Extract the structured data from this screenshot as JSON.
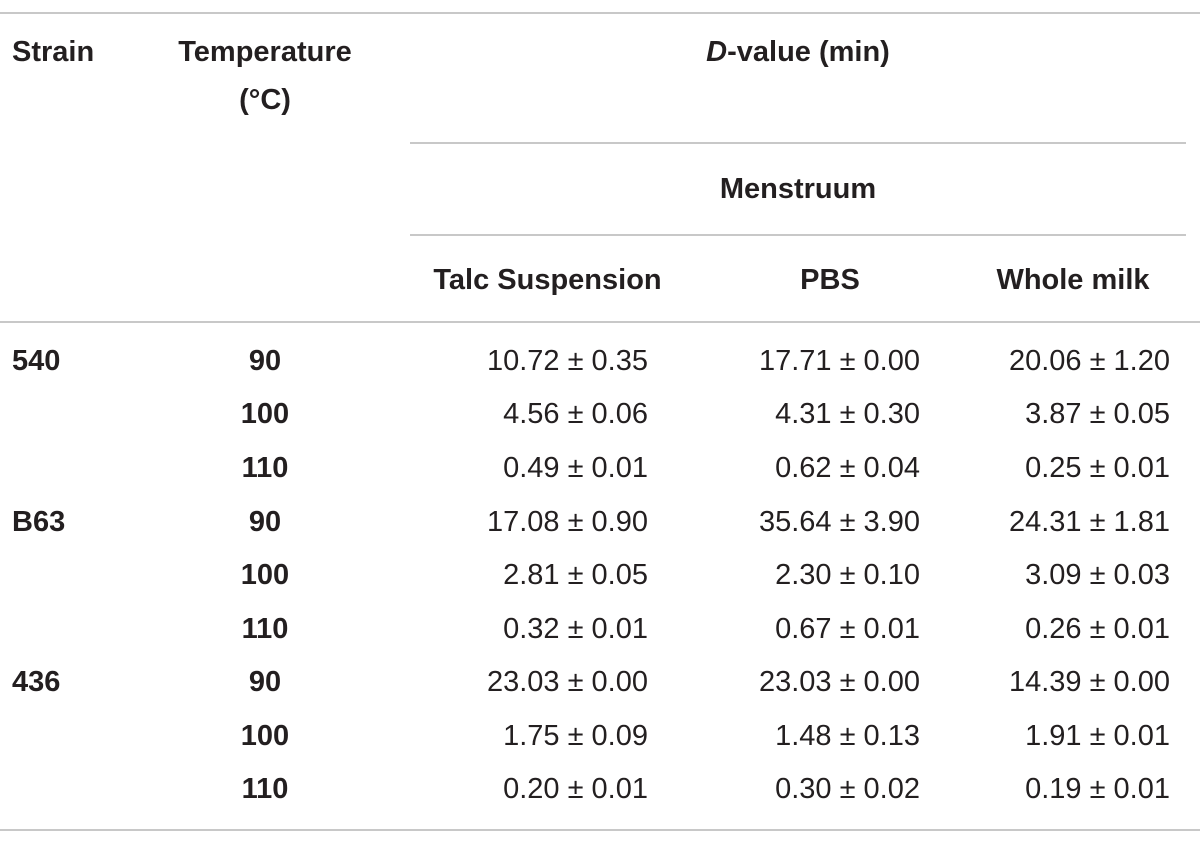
{
  "table": {
    "header": {
      "strain": "Strain",
      "temperature_line1": "Temperature",
      "temperature_line2": "(°C)",
      "d_value_prefix": "D",
      "d_value_rest": "-value (min)",
      "menstruum": "Menstruum",
      "columns": [
        "Talc Suspension",
        "PBS",
        "Whole milk"
      ]
    },
    "rows": [
      {
        "strain": "540",
        "temp": "90",
        "values": [
          "10.72 ± 0.35",
          "17.71 ± 0.00",
          "20.06 ± 1.20"
        ]
      },
      {
        "strain": "",
        "temp": "100",
        "values": [
          "4.56 ± 0.06",
          "4.31 ± 0.30",
          "3.87 ± 0.05"
        ]
      },
      {
        "strain": "",
        "temp": "110",
        "values": [
          "0.49 ± 0.01",
          "0.62 ± 0.04",
          "0.25 ± 0.01"
        ]
      },
      {
        "strain": "B63",
        "temp": "90",
        "values": [
          "17.08 ± 0.90",
          "35.64 ± 3.90",
          "24.31 ± 1.81"
        ]
      },
      {
        "strain": "",
        "temp": "100",
        "values": [
          "2.81 ± 0.05",
          "2.30 ± 0.10",
          "3.09 ± 0.03"
        ]
      },
      {
        "strain": "",
        "temp": "110",
        "values": [
          "0.32 ± 0.01",
          "0.67 ± 0.01",
          "0.26 ± 0.01"
        ]
      },
      {
        "strain": "436",
        "temp": "90",
        "values": [
          "23.03 ± 0.00",
          "23.03 ± 0.00",
          "14.39 ± 0.00"
        ]
      },
      {
        "strain": "",
        "temp": "100",
        "values": [
          "1.75 ± 0.09",
          "1.48 ± 0.13",
          "1.91 ± 0.01"
        ]
      },
      {
        "strain": "",
        "temp": "110",
        "values": [
          "0.20 ± 0.01",
          "0.30 ± 0.02",
          "0.19 ± 0.01"
        ]
      }
    ]
  }
}
